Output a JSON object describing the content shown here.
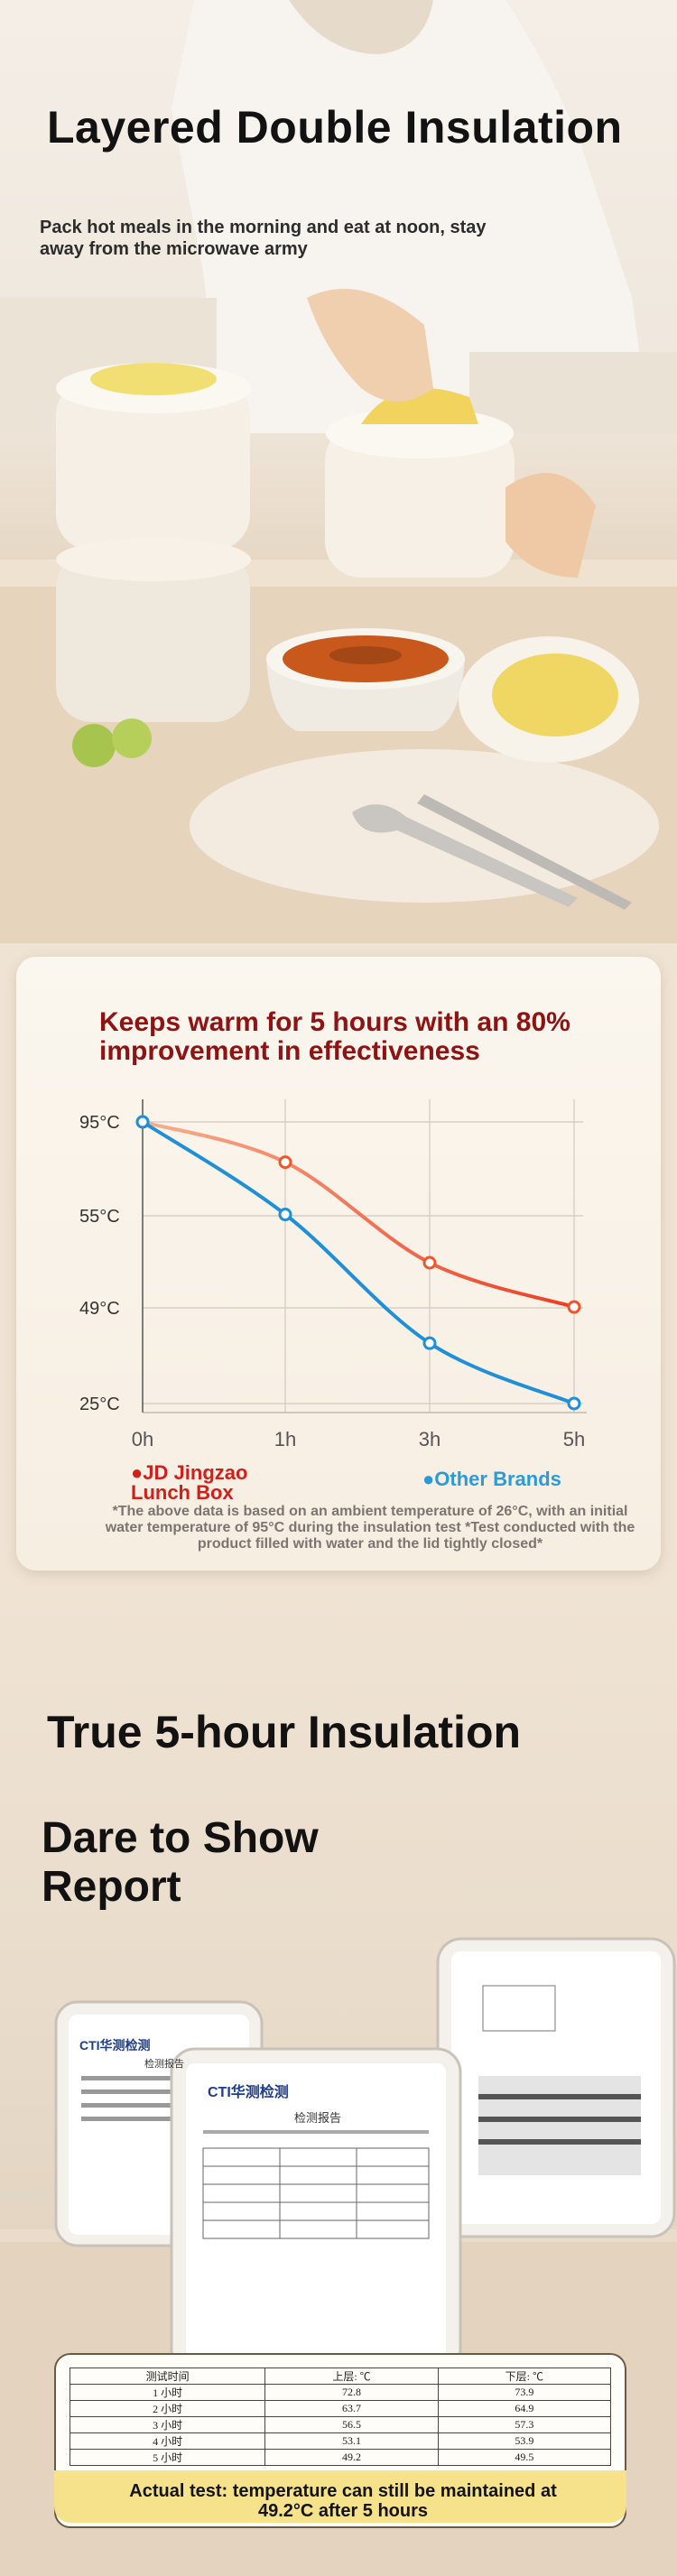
{
  "hero": {
    "title": "Layered Double Insulation",
    "subtitle": "Pack hot meals in the morning and eat at noon, stay away from the microwave army"
  },
  "chart_section": {
    "title": "Keeps warm for 5 hours with an 80% improvement in effectiveness",
    "legend": [
      {
        "label": "JD Jingzao Lunch Box",
        "color": "#d0201a"
      },
      {
        "label": "Other Brands",
        "color": "#2b9bd8"
      }
    ],
    "footnote": "*The above data is based on an ambient temperature of 26°C, with an initial water temperature of 95°C during the insulation test *Test conducted with the product filled with water and the lid tightly closed*"
  },
  "chart_data": {
    "type": "line",
    "x": [
      "0h",
      "1h",
      "3h",
      "5h"
    ],
    "y_ticks": [
      "95°C",
      "55°C",
      "49°C",
      "25°C"
    ],
    "grid": true,
    "series": [
      {
        "name": "JD Jingzao Lunch Box",
        "color": "#f0562c",
        "values": [
          95,
          85,
          60,
          49
        ]
      },
      {
        "name": "Other Brands",
        "color": "#1f8fd8",
        "values": [
          95,
          72,
          40,
          25
        ]
      }
    ]
  },
  "report_section": {
    "title": "True 5-hour Insulation",
    "subtitle": "Dare to Show Report",
    "doc_brand": "CTI华测检测",
    "doc_title": "检测报告",
    "table": {
      "headers": [
        "测试时间",
        "上层: ℃",
        "下层: ℃"
      ],
      "rows": [
        [
          "1 小时",
          "72.8",
          "73.9"
        ],
        [
          "2 小时",
          "63.7",
          "64.9"
        ],
        [
          "3 小时",
          "56.5",
          "57.3"
        ],
        [
          "4 小时",
          "53.1",
          "53.9"
        ],
        [
          "5 小时",
          "49.2",
          "49.5"
        ]
      ]
    },
    "result": "Actual test: temperature can still be maintained at 49.2°C after 5 hours"
  }
}
